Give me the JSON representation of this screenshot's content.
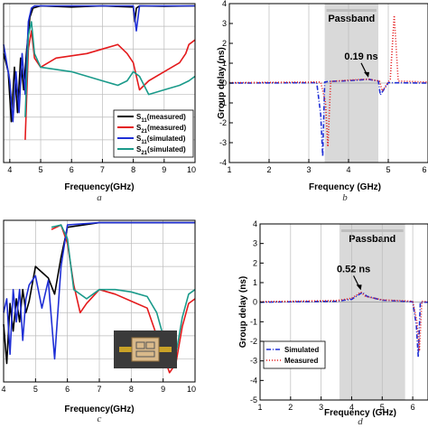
{
  "chart_data": [
    {
      "panel": "a",
      "caption": "a",
      "type": "line",
      "xlabel": "Frequency(GHz)",
      "ylabel": "",
      "xlim": [
        3.8,
        10
      ],
      "ylim": [
        -70,
        0
      ],
      "xticks": [
        "4",
        "5",
        "6",
        "7",
        "8",
        "9",
        "10"
      ],
      "grid": true,
      "legend": {
        "position": "bottom-right",
        "entries": [
          {
            "base": "S",
            "sub": "11",
            "suffix": "(measured)",
            "color": "#000000"
          },
          {
            "base": "S",
            "sub": "21",
            "suffix": "(measured)",
            "color": "#e41a1c"
          },
          {
            "base": "S",
            "sub": "11",
            "suffix": "(simulated)",
            "color": "#1f2fd6"
          },
          {
            "base": "S",
            "sub": "21",
            "suffix": "(simulated)",
            "color": "#1a9a8a"
          }
        ]
      },
      "series": [
        {
          "name": "S11(measured)",
          "color": "#000000",
          "x": [
            3.8,
            3.95,
            4.05,
            4.15,
            4.25,
            4.35,
            4.45,
            4.55,
            4.65,
            4.75,
            5.0,
            6.0,
            7.0,
            8.0,
            8.05,
            8.1,
            8.2,
            9.0,
            10.0
          ],
          "y": [
            -22,
            -30,
            -52,
            -28,
            -48,
            -24,
            -38,
            -20,
            -6,
            -2,
            -1,
            -1.5,
            -1,
            -1.5,
            -8,
            -2,
            -1,
            -1.2,
            -1
          ]
        },
        {
          "name": "S21(measured)",
          "color": "#e41a1c",
          "x": [
            4.5,
            4.6,
            4.7,
            4.8,
            5.0,
            5.5,
            6.0,
            6.5,
            7.0,
            7.5,
            7.8,
            8.0,
            8.2,
            8.5,
            9.0,
            9.5,
            9.7,
            9.8,
            10.0
          ],
          "y": [
            -60,
            -20,
            -12,
            -24,
            -28,
            -24,
            -23,
            -22,
            -20,
            -18,
            -22,
            -26,
            -38,
            -34,
            -30,
            -26,
            -22,
            -18,
            -16
          ]
        },
        {
          "name": "S11(simulated)",
          "color": "#1f2fd6",
          "x": [
            3.8,
            3.9,
            4.0,
            4.1,
            4.2,
            4.3,
            4.4,
            4.5,
            4.6,
            4.7,
            4.8,
            5.0,
            6.0,
            8.0,
            8.1,
            8.2,
            10.0
          ],
          "y": [
            -18,
            -26,
            -34,
            -52,
            -30,
            -48,
            -22,
            -40,
            -8,
            -2,
            -1,
            -1,
            -1,
            -1,
            -12,
            -1,
            -1
          ]
        },
        {
          "name": "S21(simulated)",
          "color": "#1a9a8a",
          "x": [
            4.5,
            4.6,
            4.7,
            4.8,
            5.0,
            6.0,
            7.0,
            7.5,
            7.8,
            8.0,
            8.2,
            8.5,
            9.0,
            9.5,
            9.8,
            10.0
          ],
          "y": [
            -50,
            -14,
            -8,
            -22,
            -28,
            -30,
            -34,
            -36,
            -34,
            -30,
            -32,
            -40,
            -38,
            -36,
            -34,
            -32
          ]
        }
      ]
    },
    {
      "panel": "b",
      "caption": "b",
      "type": "line",
      "xlabel": "Frequency (GHz)",
      "ylabel": "Group delay (ns)",
      "xlim": [
        1,
        6
      ],
      "ylim": [
        -4,
        4
      ],
      "xticks": [
        "1",
        "2",
        "3",
        "4",
        "5",
        "6"
      ],
      "yticks": [
        "-4",
        "-3",
        "-2",
        "-1",
        "0",
        "1",
        "2",
        "3",
        "4"
      ],
      "passband": {
        "label": "Passband",
        "from": 3.4,
        "to": 4.75
      },
      "annotation": {
        "text": "0.19 ns",
        "x": 4.5,
        "y": 0.19
      },
      "series": [
        {
          "name": "Simulated",
          "color": "#1f2fd6",
          "dash": "5,2,1,2",
          "x": [
            1,
            3.2,
            3.3,
            3.35,
            3.4,
            3.5,
            4.0,
            4.5,
            4.75,
            4.8,
            5.0,
            6.0
          ],
          "y": [
            0,
            0.02,
            -1.6,
            -3.7,
            0.05,
            0.08,
            0.12,
            0.19,
            0.1,
            -0.6,
            0.02,
            0
          ]
        },
        {
          "name": "Measured",
          "color": "#e41a1c",
          "dash": "1,2",
          "x": [
            1,
            3.3,
            3.42,
            3.48,
            3.55,
            4.0,
            4.5,
            4.78,
            4.85,
            5.05,
            5.15,
            5.25,
            6.0
          ],
          "y": [
            0.02,
            0.05,
            -1.0,
            -3.2,
            0.08,
            0.15,
            0.2,
            0.1,
            -0.4,
            0.2,
            3.4,
            0.1,
            0.05
          ]
        }
      ]
    },
    {
      "panel": "c",
      "caption": "c",
      "type": "line",
      "xlabel": "Frequency(GHz)",
      "ylabel": "",
      "xlim": [
        4,
        10
      ],
      "ylim": [
        -70,
        0
      ],
      "xticks": [
        "4",
        "5",
        "6",
        "7",
        "8",
        "9",
        "10"
      ],
      "grid": true,
      "inset": "photo of fabricated filter",
      "series": [
        {
          "name": "S11(measured)",
          "color": "#000000",
          "x": [
            4.0,
            4.1,
            4.2,
            4.3,
            4.4,
            4.5,
            4.6,
            4.7,
            4.8,
            5.0,
            5.4,
            5.6,
            5.8,
            6.0,
            7.0,
            8.0,
            9.0,
            10.0
          ],
          "y": [
            -45,
            -62,
            -36,
            -48,
            -34,
            -44,
            -30,
            -40,
            -35,
            -20,
            -25,
            -32,
            -16,
            -3,
            -1,
            -1,
            -1,
            -1
          ]
        },
        {
          "name": "S21(measured)",
          "color": "#e41a1c",
          "x": [
            5.5,
            5.8,
            6.0,
            6.2,
            6.4,
            6.6,
            7.0,
            7.5,
            8.0,
            8.5,
            8.8,
            9.0,
            9.2,
            9.4,
            9.6,
            9.8,
            10.0
          ],
          "y": [
            -4,
            -2,
            -10,
            -28,
            -40,
            -36,
            -30,
            -32,
            -35,
            -38,
            -50,
            -58,
            -66,
            -62,
            -46,
            -36,
            -34
          ]
        },
        {
          "name": "S11(simulated)",
          "color": "#1f2fd6",
          "x": [
            4.0,
            4.1,
            4.2,
            4.3,
            4.4,
            4.5,
            4.6,
            4.7,
            4.8,
            5.0,
            5.2,
            5.4,
            5.6,
            5.8,
            6.0,
            7.0,
            10.0
          ],
          "y": [
            -40,
            -34,
            -58,
            -30,
            -44,
            -30,
            -52,
            -34,
            -28,
            -24,
            -38,
            -26,
            -60,
            -20,
            -2,
            -1,
            -1
          ]
        },
        {
          "name": "S21(simulated)",
          "color": "#1a9a8a",
          "x": [
            5.5,
            5.8,
            6.0,
            6.2,
            6.6,
            7.0,
            7.5,
            8.0,
            8.5,
            8.8,
            9.0,
            9.2,
            9.4,
            9.6,
            9.8,
            10.0
          ],
          "y": [
            -3,
            -2,
            -8,
            -30,
            -34,
            -30,
            -30,
            -31,
            -33,
            -40,
            -50,
            -62,
            -58,
            -42,
            -32,
            -30
          ]
        }
      ]
    },
    {
      "panel": "d",
      "caption": "d",
      "type": "line",
      "xlabel": "Frequency (GHz)",
      "ylabel": "Group delay (ns)",
      "xlim": [
        1,
        6.5
      ],
      "ylim": [
        -5,
        4
      ],
      "xticks": [
        "1",
        "2",
        "3",
        "4",
        "5",
        "6"
      ],
      "yticks": [
        "-5",
        "-4",
        "-3",
        "-2",
        "-1",
        "0",
        "1",
        "2",
        "3",
        "4"
      ],
      "passband": {
        "label": "Passband",
        "from": 3.6,
        "to": 5.75
      },
      "annotation": {
        "text": "0.52 ns",
        "x": 4.3,
        "y": 0.52
      },
      "legend": {
        "position": "bottom-left",
        "entries": [
          {
            "label": "Simulated",
            "color": "#1f2fd6",
            "dash": "5,2,1,2"
          },
          {
            "label": "Measured",
            "color": "#e41a1c",
            "dash": "1,2"
          }
        ]
      },
      "series": [
        {
          "name": "Simulated",
          "color": "#1f2fd6",
          "dash": "5,2,1,2",
          "x": [
            1,
            3.5,
            4.0,
            4.2,
            4.35,
            4.5,
            5.0,
            6.0,
            6.12,
            6.18,
            6.25,
            6.5
          ],
          "y": [
            0,
            0.05,
            0.15,
            0.35,
            0.5,
            0.3,
            0.1,
            0.02,
            -1.2,
            -2.8,
            0,
            0
          ]
        },
        {
          "name": "Measured",
          "color": "#e41a1c",
          "dash": "1,2",
          "x": [
            1,
            3.5,
            4.0,
            4.2,
            4.3,
            4.45,
            5.0,
            6.0,
            6.14,
            6.22,
            6.3,
            6.5
          ],
          "y": [
            0.02,
            0.08,
            0.2,
            0.4,
            0.52,
            0.3,
            0.12,
            0.05,
            -1.0,
            -2.5,
            0.05,
            0.02
          ]
        }
      ]
    }
  ]
}
